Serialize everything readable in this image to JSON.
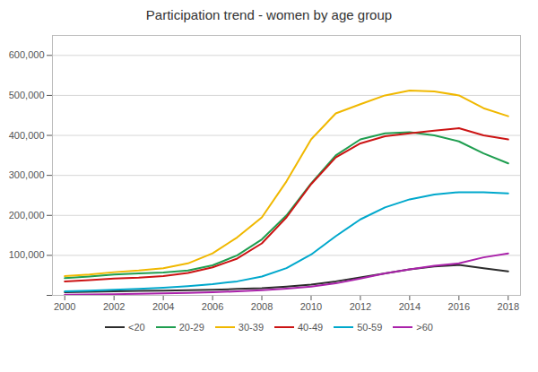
{
  "chart_data": {
    "type": "line",
    "title": "Participation trend - women by age group",
    "x": [
      2000,
      2001,
      2002,
      2003,
      2004,
      2005,
      2006,
      2007,
      2008,
      2009,
      2010,
      2011,
      2012,
      2013,
      2014,
      2015,
      2016,
      2017,
      2018
    ],
    "series": [
      {
        "name": "<20",
        "color": "#2c2c2c",
        "values": [
          8000,
          9000,
          10000,
          11000,
          12000,
          13000,
          14000,
          16000,
          18000,
          22000,
          27000,
          35000,
          45000,
          55000,
          65000,
          72000,
          76000,
          68000,
          60000
        ]
      },
      {
        "name": "20-29",
        "color": "#1f9e50",
        "values": [
          43000,
          47000,
          52000,
          55000,
          57000,
          62000,
          75000,
          100000,
          140000,
          200000,
          280000,
          350000,
          390000,
          405000,
          408000,
          400000,
          385000,
          355000,
          330000
        ]
      },
      {
        "name": "30-39",
        "color": "#f0b800",
        "values": [
          48000,
          52000,
          58000,
          62000,
          68000,
          80000,
          105000,
          145000,
          195000,
          285000,
          390000,
          455000,
          478000,
          500000,
          512000,
          510000,
          500000,
          468000,
          448000
        ]
      },
      {
        "name": "40-49",
        "color": "#cc1414",
        "values": [
          35000,
          38000,
          42000,
          44000,
          48000,
          56000,
          70000,
          92000,
          130000,
          195000,
          278000,
          345000,
          380000,
          398000,
          405000,
          412000,
          418000,
          400000,
          390000
        ]
      },
      {
        "name": "50-59",
        "color": "#00a8cc",
        "values": [
          10000,
          12000,
          14000,
          16000,
          19000,
          23000,
          28000,
          35000,
          47000,
          68000,
          102000,
          148000,
          190000,
          220000,
          240000,
          252000,
          258000,
          258000,
          255000
        ]
      },
      {
        "name": ">60",
        "color": "#aa22aa",
        "values": [
          1500,
          2000,
          3000,
          4000,
          5000,
          6000,
          8000,
          10000,
          13000,
          17000,
          22000,
          30000,
          42000,
          55000,
          65000,
          74000,
          80000,
          95000,
          105000
        ]
      }
    ],
    "xlim": [
      1999.5,
      2018.5
    ],
    "xticks": [
      2000,
      2002,
      2004,
      2006,
      2008,
      2010,
      2012,
      2014,
      2016,
      2018
    ],
    "ylim": [
      0,
      650000
    ],
    "yticks": [
      {
        "value": 0,
        "label": ""
      },
      {
        "value": 100000,
        "label": "100,000"
      },
      {
        "value": 200000,
        "label": "200,000"
      },
      {
        "value": 300000,
        "label": "300,000"
      },
      {
        "value": 400000,
        "label": "400,000"
      },
      {
        "value": 500000,
        "label": "500,000"
      },
      {
        "value": 600000,
        "label": "600,000"
      }
    ],
    "grid": true,
    "legend": "bottom"
  }
}
